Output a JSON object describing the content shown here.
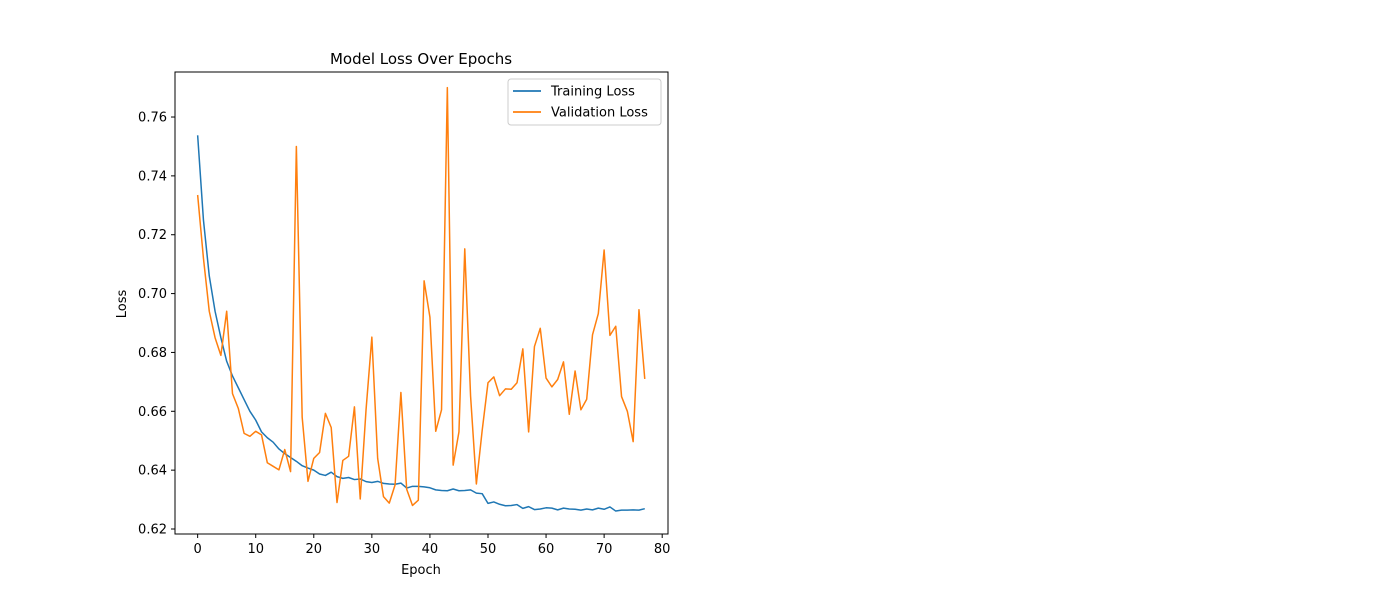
{
  "chart_data": {
    "type": "line",
    "title": "Model Loss Over Epochs",
    "xlabel": "Epoch",
    "ylabel": "Loss",
    "xlim": [
      -3.9,
      81.0
    ],
    "ylim": [
      0.6183,
      0.7753
    ],
    "x_ticks": [
      0,
      10,
      20,
      30,
      40,
      50,
      60,
      70,
      80
    ],
    "x_tick_labels": [
      "0",
      "10",
      "20",
      "30",
      "40",
      "50",
      "60",
      "70",
      "80"
    ],
    "y_ticks": [
      0.62,
      0.64,
      0.66,
      0.68,
      0.7,
      0.72,
      0.74,
      0.76
    ],
    "y_tick_labels": [
      "0.62",
      "0.64",
      "0.66",
      "0.68",
      "0.70",
      "0.72",
      "0.74",
      "0.76"
    ],
    "grid": false,
    "legend_position": "top-right",
    "x": [
      0,
      1,
      2,
      3,
      4,
      5,
      6,
      7,
      8,
      9,
      10,
      11,
      12,
      13,
      14,
      15,
      16,
      17,
      18,
      19,
      20,
      21,
      22,
      23,
      24,
      25,
      26,
      27,
      28,
      29,
      30,
      31,
      32,
      33,
      34,
      35,
      36,
      37,
      38,
      39,
      40,
      41,
      42,
      43,
      44,
      45,
      46,
      47,
      48,
      49,
      50,
      51,
      52,
      53,
      54,
      55,
      56,
      57,
      58,
      59,
      60,
      61,
      62,
      63,
      64,
      65,
      66,
      67,
      68,
      69,
      70,
      71,
      72,
      73,
      74,
      75,
      76,
      77
    ],
    "series": [
      {
        "name": "Training Loss",
        "color": "#1f77b4",
        "values": [
          0.7538,
          0.725,
          0.706,
          0.694,
          0.685,
          0.677,
          0.672,
          0.668,
          0.664,
          0.66,
          0.657,
          0.653,
          0.651,
          0.6495,
          0.6472,
          0.6456,
          0.6443,
          0.643,
          0.6415,
          0.6407,
          0.64,
          0.6387,
          0.6382,
          0.6393,
          0.6378,
          0.6372,
          0.6375,
          0.6368,
          0.637,
          0.6361,
          0.6358,
          0.6362,
          0.6355,
          0.6353,
          0.6352,
          0.6356,
          0.6339,
          0.6345,
          0.6345,
          0.6343,
          0.634,
          0.6333,
          0.6331,
          0.633,
          0.6336,
          0.633,
          0.6331,
          0.6333,
          0.6322,
          0.632,
          0.6287,
          0.6292,
          0.6284,
          0.6279,
          0.628,
          0.6283,
          0.627,
          0.6276,
          0.6266,
          0.6268,
          0.6272,
          0.6271,
          0.6265,
          0.6271,
          0.6268,
          0.6267,
          0.6264,
          0.6268,
          0.6265,
          0.6271,
          0.6267,
          0.6275,
          0.6261,
          0.6264,
          0.6264,
          0.6265,
          0.6264,
          0.6269
        ]
      },
      {
        "name": "Validation Loss",
        "color": "#ff7f0e",
        "values": [
          0.7335,
          0.712,
          0.694,
          0.685,
          0.679,
          0.694,
          0.666,
          0.661,
          0.6525,
          0.6515,
          0.6532,
          0.652,
          0.6425,
          0.6413,
          0.6401,
          0.647,
          0.6395,
          0.75,
          0.658,
          0.6362,
          0.644,
          0.646,
          0.6593,
          0.6545,
          0.629,
          0.6433,
          0.6447,
          0.6615,
          0.6302,
          0.6605,
          0.6852,
          0.644,
          0.631,
          0.6288,
          0.635,
          0.6664,
          0.6335,
          0.628,
          0.6298,
          0.7043,
          0.692,
          0.6532,
          0.6605,
          0.77,
          0.6417,
          0.653,
          0.7152,
          0.6652,
          0.6353,
          0.6535,
          0.6697,
          0.6717,
          0.6653,
          0.6676,
          0.6675,
          0.6697,
          0.6812,
          0.653,
          0.682,
          0.6882,
          0.6713,
          0.6683,
          0.6708,
          0.6768,
          0.659,
          0.6737,
          0.6605,
          0.6641,
          0.686,
          0.6932,
          0.7148,
          0.6858,
          0.6889,
          0.665,
          0.66,
          0.6497,
          0.6945,
          0.671
        ]
      }
    ]
  }
}
